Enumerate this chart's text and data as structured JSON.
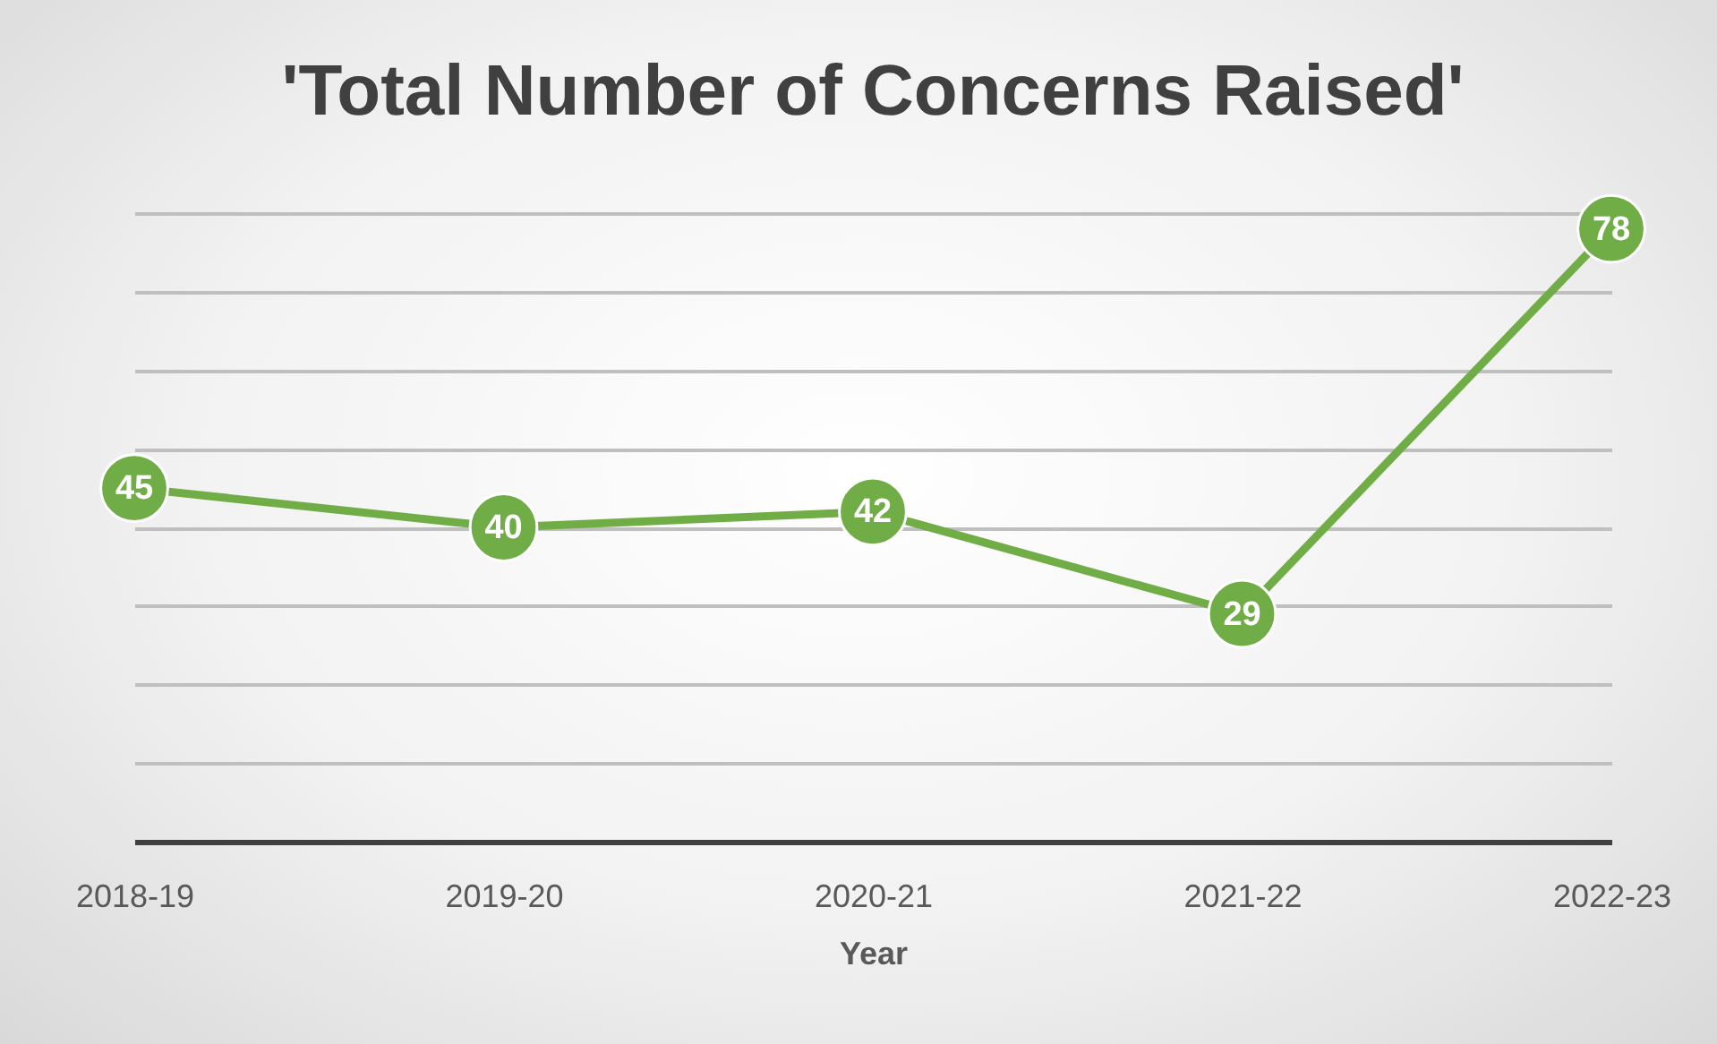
{
  "chart_data": {
    "type": "line",
    "title": "'Total Number of Concerns Raised'",
    "xlabel": "Year",
    "categories": [
      "2018-19",
      "2019-20",
      "2020-21",
      "2021-22",
      "2022-23"
    ],
    "series": [
      {
        "color": "#70ad47",
        "values": [
          45,
          40,
          42,
          29,
          78
        ]
      }
    ],
    "tick_labels": "x",
    "grid": "y",
    "marker": "circle",
    "line_style": "solid",
    "data_labels": true
  }
}
